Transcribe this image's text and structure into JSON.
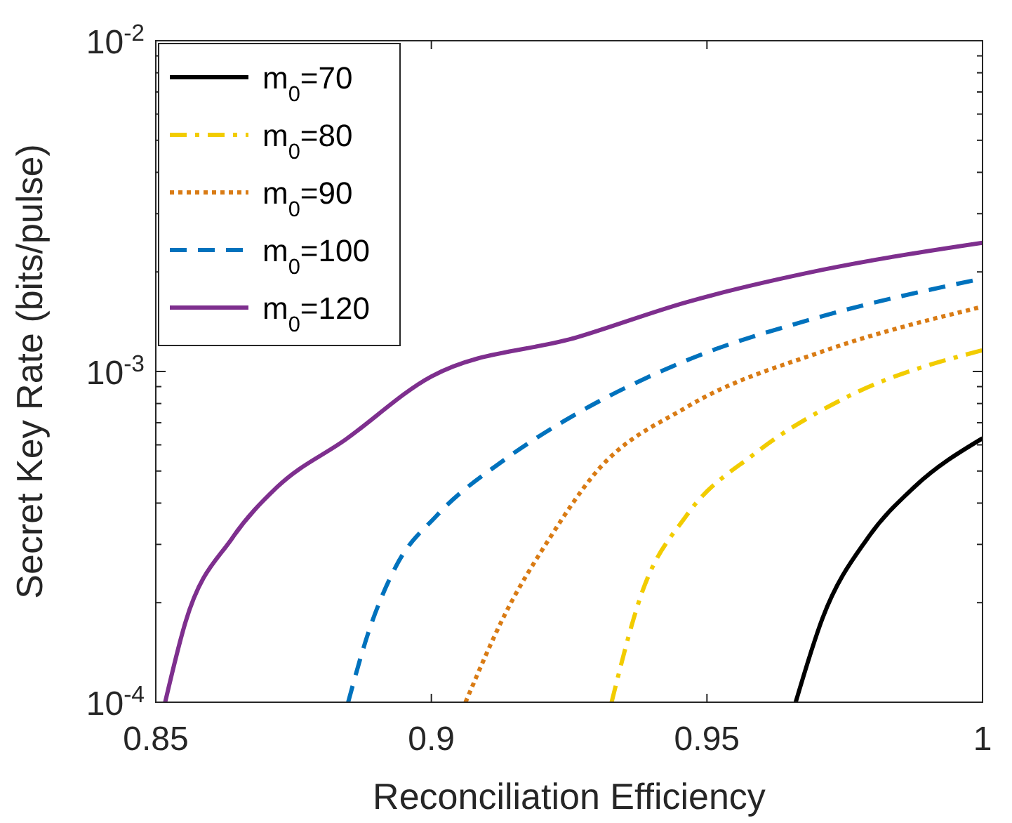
{
  "chart_data": {
    "type": "line",
    "xlabel": "Reconciliation Efficiency",
    "ylabel": "Secret Key Rate (bits/pulse)",
    "log": "y",
    "xlim": [
      0.85,
      1
    ],
    "xticks": [
      0.85,
      0.9,
      0.95,
      1
    ],
    "ylim": [
      0.0001,
      0.01
    ],
    "yticks": [
      {
        "value": 0.0001,
        "label": "10$^{-4}$"
      },
      {
        "value": 0.0002,
        "label": null
      },
      {
        "value": 0.0003,
        "label": null
      },
      {
        "value": 0.0004,
        "label": null
      },
      {
        "value": 0.0005,
        "label": null
      },
      {
        "value": 0.0006,
        "label": null
      },
      {
        "value": 0.0007,
        "label": null
      },
      {
        "value": 0.0008,
        "label": null
      },
      {
        "value": 0.0009,
        "label": null
      },
      {
        "value": 0.001,
        "label": "10$^{-3}$"
      },
      {
        "value": 0.002,
        "label": null
      },
      {
        "value": 0.003,
        "label": null
      },
      {
        "value": 0.004,
        "label": null
      },
      {
        "value": 0.005,
        "label": null
      },
      {
        "value": 0.006,
        "label": null
      },
      {
        "value": 0.007,
        "label": null
      },
      {
        "value": 0.008,
        "label": null
      },
      {
        "value": 0.009,
        "label": null
      },
      {
        "value": 0.01,
        "label": "10$^{-2}$"
      }
    ],
    "grid": false,
    "legend": "top left",
    "marker": "none",
    "series": [
      {
        "name": "m$_{0}$=70",
        "color": "#000000",
        "line_style": "solid",
        "x": [
          0.9661,
          0.971,
          0.9792,
          0.9876,
          1.0
        ],
        "values": [
          0.0001,
          0.00018,
          0.000314,
          0.000447,
          0.000628
        ]
      },
      {
        "name": "m$_{0}$=80",
        "color": "#f2cc00",
        "line_style": "dashdot",
        "x": [
          0.9327,
          0.9381,
          0.9463,
          0.9587,
          0.9752,
          1.0
        ],
        "values": [
          0.0001,
          0.000212,
          0.000367,
          0.000565,
          0.000834,
          0.00116
        ]
      },
      {
        "name": "m$_{0}$=90",
        "color": "#d97b14",
        "line_style": "dotted",
        "x": [
          0.9062,
          0.9134,
          0.9215,
          0.9297,
          0.9463,
          0.971,
          1.0
        ],
        "values": [
          0.0001,
          0.000185,
          0.000314,
          0.000492,
          0.00078,
          0.00115,
          0.00157
        ]
      },
      {
        "name": "m$_{0}$=100",
        "color": "#0072bd",
        "line_style": "dashed",
        "x": [
          0.8849,
          0.8886,
          0.8936,
          0.901,
          0.9134,
          0.924,
          0.9463,
          0.971,
          1.0
        ],
        "values": [
          0.0001,
          0.000163,
          0.000258,
          0.000367,
          0.000543,
          0.000707,
          0.00108,
          0.00147,
          0.00191
        ]
      },
      {
        "name": "m$_{0}$=120",
        "color": "#7e2f8e",
        "line_style": "solid",
        "x": [
          0.8517,
          0.8554,
          0.8639,
          0.872,
          0.8844,
          0.9,
          0.9265,
          0.9463,
          0.971,
          1.0
        ],
        "values": [
          0.0001,
          0.000175,
          0.000314,
          0.000447,
          0.000622,
          0.000966,
          0.00127,
          0.00162,
          0.00203,
          0.00245
        ]
      }
    ]
  }
}
